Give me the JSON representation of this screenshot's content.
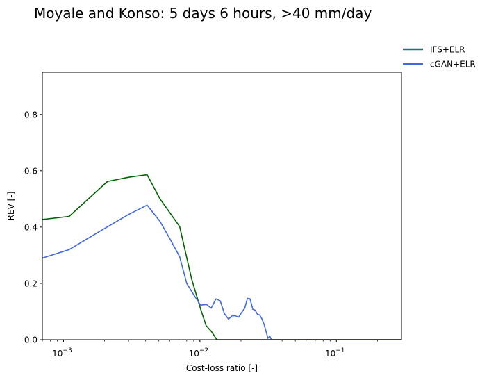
{
  "chart_data": {
    "type": "line",
    "title": "Moyale and Konso: 5 days 6 hours, >40 mm/day",
    "xlabel": "Cost-loss ratio [-]",
    "ylabel": "REV [-]",
    "xscale": "log",
    "xlim": [
      0.0007,
      0.3
    ],
    "ylim": [
      0,
      0.95
    ],
    "grid": false,
    "legend_position": "top-right outside",
    "x_ticks": [
      {
        "value": 0.001,
        "base": "10",
        "exp": "−3"
      },
      {
        "value": 0.01,
        "base": "10",
        "exp": "−2"
      },
      {
        "value": 0.1,
        "base": "10",
        "exp": "−1"
      }
    ],
    "y_ticks": [
      "0.0",
      "0.2",
      "0.4",
      "0.6",
      "0.8"
    ],
    "series": [
      {
        "name": "IFS+ELR",
        "color": "#006400",
        "legend_color": "#007f7f",
        "points": [
          [
            0.0007,
            0.427
          ],
          [
            0.0011,
            0.438
          ],
          [
            0.0021,
            0.562
          ],
          [
            0.003,
            0.577
          ],
          [
            0.0041,
            0.586
          ],
          [
            0.0051,
            0.5
          ],
          [
            0.0071,
            0.402
          ],
          [
            0.0087,
            0.215
          ],
          [
            0.0101,
            0.11
          ],
          [
            0.0111,
            0.05
          ],
          [
            0.0121,
            0.03
          ],
          [
            0.0133,
            0.0
          ],
          [
            0.3,
            0.0
          ]
        ]
      },
      {
        "name": "cGAN+ELR",
        "color": "#4169e1",
        "legend_color": "#4169e1",
        "points": [
          [
            0.0007,
            0.29
          ],
          [
            0.0011,
            0.32
          ],
          [
            0.002,
            0.395
          ],
          [
            0.003,
            0.445
          ],
          [
            0.0041,
            0.478
          ],
          [
            0.0051,
            0.42
          ],
          [
            0.006,
            0.36
          ],
          [
            0.0071,
            0.295
          ],
          [
            0.008,
            0.2
          ],
          [
            0.009,
            0.16
          ],
          [
            0.0101,
            0.123
          ],
          [
            0.0112,
            0.125
          ],
          [
            0.0121,
            0.112
          ],
          [
            0.0131,
            0.145
          ],
          [
            0.0141,
            0.138
          ],
          [
            0.0151,
            0.093
          ],
          [
            0.0162,
            0.073
          ],
          [
            0.0172,
            0.085
          ],
          [
            0.0182,
            0.085
          ],
          [
            0.0192,
            0.08
          ],
          [
            0.0203,
            0.098
          ],
          [
            0.0213,
            0.112
          ],
          [
            0.0223,
            0.147
          ],
          [
            0.0233,
            0.145
          ],
          [
            0.0244,
            0.108
          ],
          [
            0.0254,
            0.105
          ],
          [
            0.0264,
            0.09
          ],
          [
            0.0274,
            0.088
          ],
          [
            0.0284,
            0.075
          ],
          [
            0.0295,
            0.055
          ],
          [
            0.0305,
            0.03
          ],
          [
            0.0315,
            0.005
          ],
          [
            0.0325,
            0.012
          ],
          [
            0.0335,
            0.0
          ],
          [
            0.3,
            0.0
          ]
        ]
      }
    ]
  }
}
